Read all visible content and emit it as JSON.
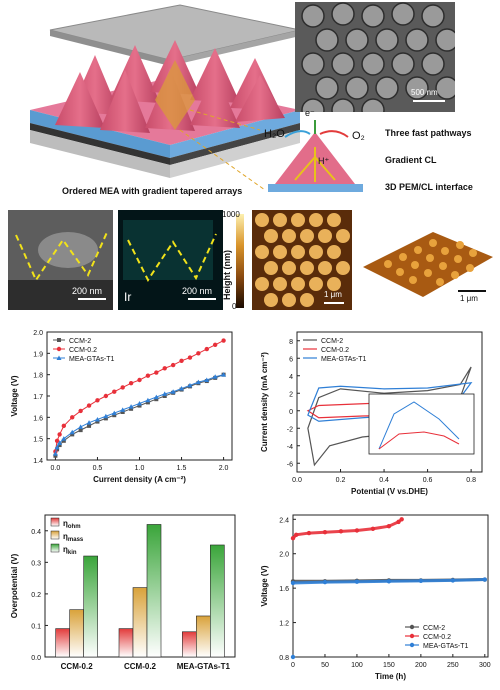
{
  "schematic": {
    "caption": "Ordered MEA with gradient tapered arrays",
    "sem_scale": "500 nm",
    "electron": "e⁻",
    "h2o": "H₂O",
    "o2": "O₂",
    "proton": "H⁺",
    "legend": [
      "Three fast pathways",
      "Gradient CL",
      "3D PEM/CL interface"
    ]
  },
  "micro": {
    "sem_scale": "200 nm",
    "eds_scale": "200 nm",
    "eds_element": "Ir",
    "colorbar_title": "Height (nm)",
    "colorbar_max": "1000",
    "colorbar_min": "0",
    "afm_scale": "1 μm",
    "afm3d_scale": "1 μm"
  },
  "polarization": {
    "ylabel": "Voltage (V)",
    "xlabel": "Current density (A cm⁻²)",
    "yticks": [
      "1.4",
      "1.5",
      "1.6",
      "1.7",
      "1.8",
      "1.9",
      "2.0"
    ],
    "xticks": [
      "0.0",
      "0.5",
      "1.0",
      "1.5",
      "2.0"
    ],
    "legend": [
      "CCM-2",
      "CCM-0.2",
      "MEA-GTAs-T1"
    ]
  },
  "cv": {
    "ylabel": "Current density (mA cm⁻²)",
    "xlabel": "Potential (V vs.DHE)",
    "yticks": [
      "8",
      "6",
      "4",
      "2",
      "0",
      "-2",
      "-4",
      "-6"
    ],
    "xticks": [
      "0.0",
      "0.2",
      "0.4",
      "0.6",
      "0.8"
    ],
    "legend": [
      "CCM-2",
      "CCM-0.2",
      "MEA-GTAs-T1"
    ]
  },
  "overpotential": {
    "ylabel": "Overpotential (V)",
    "yticks": [
      "0.0",
      "0.1",
      "0.2",
      "0.3",
      "0.4"
    ],
    "xticks": [
      "CCM-0.2",
      "CCM-0.2",
      "MEA-GTAs-T1"
    ],
    "legend": [
      "η",
      "η",
      "η"
    ],
    "legend_sub": [
      "ohm",
      "mass",
      "kin"
    ]
  },
  "durability": {
    "ylabel": "Voltage (V)",
    "xlabel": "Time (h)",
    "yticks": [
      "2.4",
      "2.0",
      "1.6",
      "1.2",
      "0.8"
    ],
    "xticks": [
      "0",
      "50",
      "100",
      "150",
      "200",
      "250",
      "300"
    ],
    "legend": [
      "CCM-2",
      "CCM-0.2",
      "MEA-GTAs-T1"
    ]
  },
  "colors": {
    "ccm2": "#555555",
    "ccm02": "#e8303a",
    "mea": "#2f7fd6",
    "ohm": "#e23b3b",
    "mass": "#d9a23a",
    "kin": "#3aa53a"
  },
  "chart_data": [
    {
      "type": "line",
      "xlabel": "Current density (A cm⁻²)",
      "ylabel": "Voltage (V)",
      "xlim": [
        -0.1,
        2.1
      ],
      "ylim": [
        1.4,
        2.0
      ],
      "x": [
        0.0,
        0.02,
        0.05,
        0.1,
        0.2,
        0.3,
        0.4,
        0.5,
        0.6,
        0.7,
        0.8,
        0.9,
        1.0,
        1.1,
        1.2,
        1.3,
        1.4,
        1.5,
        1.6,
        1.7,
        1.8,
        1.9,
        2.0
      ],
      "series": [
        {
          "name": "CCM-2",
          "values": [
            1.42,
            1.45,
            1.47,
            1.49,
            1.52,
            1.54,
            1.56,
            1.58,
            1.595,
            1.61,
            1.625,
            1.64,
            1.655,
            1.67,
            1.685,
            1.7,
            1.715,
            1.73,
            1.745,
            1.76,
            1.77,
            1.785,
            1.8
          ]
        },
        {
          "name": "CCM-0.2",
          "values": [
            1.44,
            1.49,
            1.52,
            1.56,
            1.6,
            1.63,
            1.655,
            1.68,
            1.7,
            1.72,
            1.74,
            1.76,
            1.775,
            1.795,
            1.81,
            1.83,
            1.845,
            1.865,
            1.88,
            1.9,
            1.92,
            1.94,
            1.96
          ]
        },
        {
          "name": "MEA-GTAs-T1",
          "values": [
            1.43,
            1.46,
            1.48,
            1.5,
            1.53,
            1.555,
            1.575,
            1.59,
            1.605,
            1.62,
            1.635,
            1.65,
            1.665,
            1.68,
            1.695,
            1.71,
            1.72,
            1.735,
            1.75,
            1.765,
            1.775,
            1.79,
            1.8
          ]
        }
      ]
    },
    {
      "type": "line",
      "xlabel": "Potential (V vs.DHE)",
      "ylabel": "Current density (mA cm⁻²)",
      "xlim": [
        0.0,
        0.85
      ],
      "ylim": [
        -7,
        9
      ]
    },
    {
      "type": "bar",
      "ylabel": "Overpotential (V)",
      "categories": [
        "CCM-0.2",
        "CCM-0.2",
        "MEA-GTAs-T1"
      ],
      "ylim": [
        0,
        0.45
      ],
      "series": [
        {
          "name": "η_ohm",
          "values": [
            0.09,
            0.09,
            0.08
          ]
        },
        {
          "name": "η_mass",
          "values": [
            0.15,
            0.22,
            0.13
          ]
        },
        {
          "name": "η_kin",
          "values": [
            0.32,
            0.42,
            0.355
          ]
        }
      ]
    },
    {
      "type": "line",
      "xlabel": "Time (h)",
      "ylabel": "Voltage (V)",
      "xlim": [
        0,
        305
      ],
      "ylim": [
        0.8,
        2.45
      ],
      "series": [
        {
          "name": "CCM-2",
          "x": [
            0,
            50,
            100,
            150,
            200,
            250,
            300
          ],
          "values": [
            1.68,
            1.68,
            1.685,
            1.69,
            1.69,
            1.695,
            1.7
          ]
        },
        {
          "name": "CCM-0.2",
          "x": [
            0,
            5,
            25,
            50,
            75,
            100,
            125,
            150,
            165,
            170
          ],
          "values": [
            2.18,
            2.22,
            2.24,
            2.25,
            2.26,
            2.27,
            2.29,
            2.32,
            2.37,
            2.4
          ]
        },
        {
          "name": "MEA-GTAs-T1",
          "x": [
            0,
            50,
            100,
            150,
            200,
            250,
            300
          ],
          "values": [
            1.66,
            1.67,
            1.675,
            1.68,
            1.685,
            1.69,
            1.7
          ]
        }
      ]
    }
  ]
}
